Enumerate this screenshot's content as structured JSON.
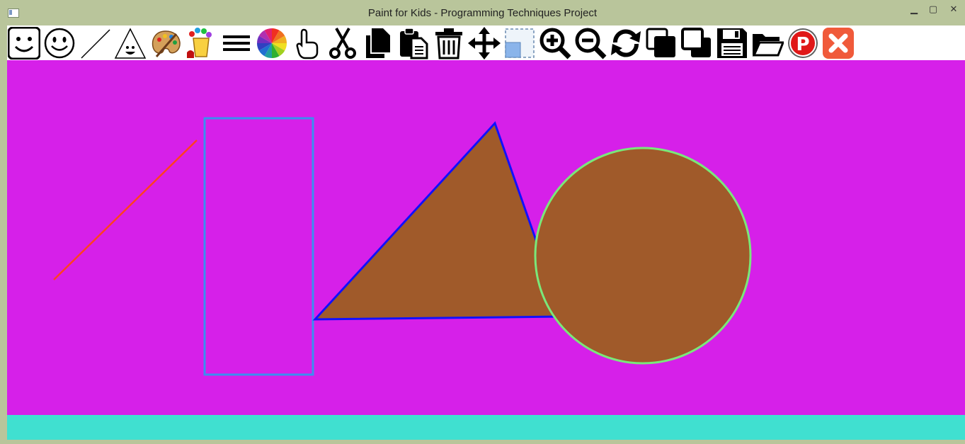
{
  "window": {
    "title": "Paint for Kids - Programming Techniques Project",
    "controls": [
      "minimize-icon",
      "maximize-icon",
      "close-icon"
    ]
  },
  "toolbar": {
    "tools": [
      {
        "name": "draw-mode-icon"
      },
      {
        "name": "smiley-icon"
      },
      {
        "name": "line-icon"
      },
      {
        "name": "triangle-icon"
      },
      {
        "name": "palette-icon"
      },
      {
        "name": "paint-bucket-icon"
      },
      {
        "name": "border-width-icon"
      },
      {
        "name": "color-wheel-icon"
      },
      {
        "name": "select-hand-icon"
      },
      {
        "name": "cut-icon"
      },
      {
        "name": "copy-icon"
      },
      {
        "name": "paste-icon"
      },
      {
        "name": "delete-icon"
      },
      {
        "name": "move-icon"
      },
      {
        "name": "resize-icon"
      },
      {
        "name": "zoom-in-icon"
      },
      {
        "name": "zoom-out-icon"
      },
      {
        "name": "rotate-icon"
      },
      {
        "name": "send-to-back-icon"
      },
      {
        "name": "bring-to-front-icon"
      },
      {
        "name": "save-icon"
      },
      {
        "name": "open-folder-icon"
      },
      {
        "name": "play-mode-icon",
        "letter": "P"
      },
      {
        "name": "exit-icon"
      }
    ]
  },
  "colors": {
    "titlebar": "#b9c59b",
    "canvas": "#d620e9",
    "statusbar": "#40e0d0",
    "line": "#ff4020",
    "rect_border": "#3a8ff0",
    "triangle_fill": "#a05a2a",
    "triangle_border": "#1010ff",
    "circle_fill": "#a05a2a",
    "circle_border": "#7ae87a"
  },
  "canvas": {
    "shapes": [
      {
        "type": "line"
      },
      {
        "type": "rectangle"
      },
      {
        "type": "triangle"
      },
      {
        "type": "circle"
      }
    ]
  },
  "statusbar": {
    "text": ""
  }
}
